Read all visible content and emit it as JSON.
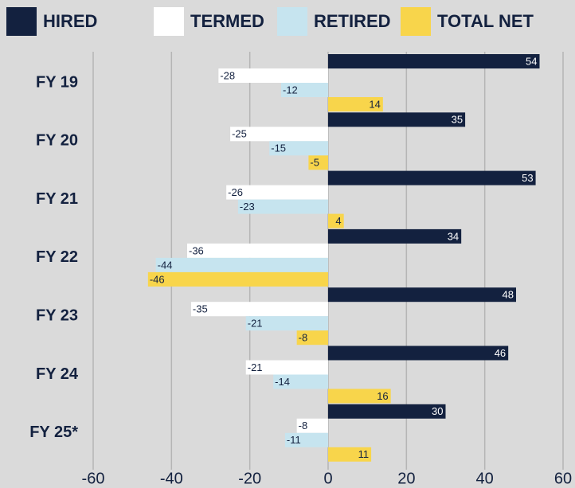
{
  "chart_data": {
    "type": "hbar",
    "categories": [
      "FY 19",
      "FY 20",
      "FY 21",
      "FY 22",
      "FY 23",
      "FY 24",
      "FY 25*"
    ],
    "series": [
      {
        "name": "HIRED",
        "color": "#13213f",
        "values": [
          54,
          35,
          53,
          34,
          48,
          46,
          30
        ]
      },
      {
        "name": "TERMED",
        "color": "#ffffff",
        "values": [
          -28,
          -25,
          -26,
          -36,
          -35,
          -21,
          -8
        ]
      },
      {
        "name": "RETIRED",
        "color": "#c6e4ef",
        "values": [
          -12,
          -15,
          -23,
          -44,
          -21,
          -14,
          -11
        ]
      },
      {
        "name": "TOTAL NET",
        "color": "#f8d54b",
        "values": [
          14,
          -5,
          4,
          -46,
          -8,
          16,
          11
        ]
      }
    ],
    "xlim": [
      -60,
      60
    ],
    "xticks": [
      -60,
      -40,
      -20,
      0,
      20,
      40,
      60
    ],
    "grid": true,
    "legend": "top"
  }
}
